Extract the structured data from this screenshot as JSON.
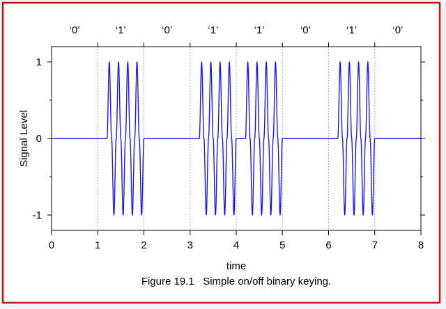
{
  "colors": {
    "border": "#cc1111",
    "panel_background": "#ffffff",
    "page_background": "#f0f4f8",
    "signal": "#1a1ae6",
    "axis": "#000000",
    "grid": "#777777"
  },
  "chart_data": {
    "type": "line",
    "title": "",
    "caption": "Figure 19.1   Simple on/off binary keying.",
    "xlabel": "time",
    "ylabel": "Signal Level",
    "xlim": [
      0,
      8
    ],
    "ylim": [
      -1.2,
      1.2
    ],
    "x_ticks": [
      "0",
      "1",
      "2",
      "3",
      "4",
      "5",
      "6",
      "7",
      "8"
    ],
    "y_ticks": [
      "1",
      "0",
      "-1"
    ],
    "x_tick_values": [
      0,
      1,
      2,
      3,
      4,
      5,
      6,
      7,
      8
    ],
    "y_tick_values": [
      1,
      0,
      -1
    ],
    "grid": "vertical dotted lines at bit boundaries",
    "legend": "none",
    "bits": [
      "‘0’",
      "‘1’",
      "‘0’",
      "‘1’",
      "‘1’",
      "‘0’",
      "‘1’",
      "‘0’"
    ],
    "bit_values": [
      0,
      1,
      0,
      1,
      1,
      0,
      1,
      0
    ],
    "bit_duration": 1,
    "on_segments": [
      [
        1.2,
        2.0
      ],
      [
        3.2,
        4.0
      ],
      [
        4.2,
        5.0
      ],
      [
        6.2,
        7.0
      ]
    ],
    "carrier_cycles_per_segment": 4,
    "amplitude": 1
  }
}
